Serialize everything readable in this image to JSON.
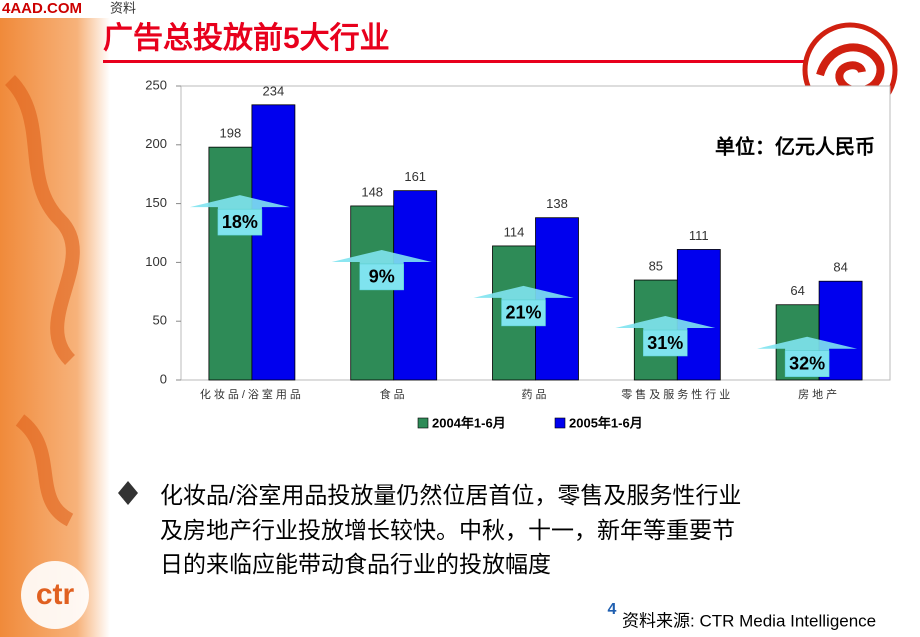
{
  "header": {
    "logo": "4AAD.COM",
    "logo_suffix": "资料",
    "title": "广告总投放前5大行业"
  },
  "chart_data": {
    "type": "bar",
    "unit": "单位：亿元人民币",
    "categories": [
      "化妆品/浴室用品",
      "食品",
      "药品",
      "零售及服务性行业",
      "房地产"
    ],
    "series": [
      {
        "name": "2004年1-6月",
        "color": "#2e8b57",
        "values": [
          198,
          148,
          114,
          85,
          64
        ]
      },
      {
        "name": "2005年1-6月",
        "color": "#0000ee",
        "values": [
          234,
          161,
          138,
          111,
          84
        ]
      }
    ],
    "ylim": [
      0,
      250
    ],
    "yticks": [
      0,
      50,
      100,
      150,
      200,
      250
    ],
    "annotations": [
      "18%",
      "9%",
      "21%",
      "31%",
      "32%"
    ]
  },
  "bullet_lines": [
    "化妆品/浴室用品投放量仍然位居首位，零售及服务性行业",
    "及房地产行业投放增长较快。中秋，十一，新年等重要节",
    "日的来临应能带动食品行业的投放幅度"
  ],
  "footer": {
    "page": "4",
    "source": "资料来源: CTR Media Intelligence",
    "brand": "ctr"
  }
}
